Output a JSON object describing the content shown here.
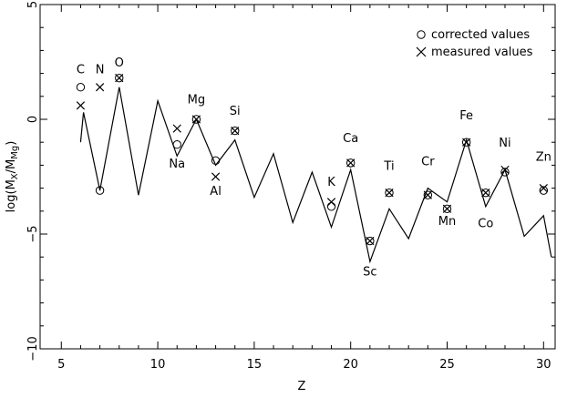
{
  "chart_data": {
    "type": "line",
    "xlabel": "Z",
    "ylabel": {
      "main": "log(M",
      "sub1": "X",
      "mid": "/M",
      "sub2": "Mg",
      "end": ")"
    },
    "xlim": [
      3.9,
      30.6
    ],
    "ylim": [
      -10,
      5
    ],
    "x_ticks": [
      5,
      10,
      15,
      20,
      25,
      30
    ],
    "y_ticks": [
      5,
      0,
      -5,
      -10
    ],
    "x_tick_labels": [
      "5",
      "10",
      "15",
      "20",
      "25",
      "30"
    ],
    "y_tick_labels": [
      "5",
      "0",
      "−5",
      "−10"
    ],
    "legend": {
      "position": "top-right",
      "corrected": "corrected values",
      "measured": "measured values"
    },
    "series": [
      {
        "x": [
          6,
          6.15,
          7,
          8,
          9,
          10,
          11,
          12,
          13,
          14,
          15,
          16,
          17,
          18,
          19,
          20,
          21,
          22,
          23,
          24,
          25,
          26,
          27,
          28,
          29,
          30,
          30.4
        ],
        "y": [
          -1.0,
          0.3,
          -3.1,
          1.4,
          -3.3,
          0.8,
          -1.6,
          0.0,
          -2.0,
          -0.9,
          -3.4,
          -1.5,
          -4.5,
          -2.3,
          -4.7,
          -2.2,
          -6.2,
          -3.9,
          -5.2,
          -3.0,
          -3.6,
          -0.9,
          -3.8,
          -2.2,
          -5.1,
          -4.2,
          -6.0
        ]
      }
    ],
    "corrected": [
      {
        "z": 6,
        "v": 1.4
      },
      {
        "z": 7,
        "v": -3.1
      },
      {
        "z": 8,
        "v": 1.8
      },
      {
        "z": 11,
        "v": -1.1
      },
      {
        "z": 12,
        "v": 0.0
      },
      {
        "z": 13,
        "v": -1.8
      },
      {
        "z": 14,
        "v": -0.5
      },
      {
        "z": 19,
        "v": -3.8
      },
      {
        "z": 20,
        "v": -1.9
      },
      {
        "z": 21,
        "v": -5.3
      },
      {
        "z": 22,
        "v": -3.2
      },
      {
        "z": 24,
        "v": -3.3
      },
      {
        "z": 25,
        "v": -3.9
      },
      {
        "z": 26,
        "v": -1.0
      },
      {
        "z": 27,
        "v": -3.2
      },
      {
        "z": 28,
        "v": -2.3
      },
      {
        "z": 30,
        "v": -3.1
      }
    ],
    "measured": [
      {
        "z": 6,
        "v": 0.6
      },
      {
        "z": 7,
        "v": 1.4
      },
      {
        "z": 8,
        "v": 1.8
      },
      {
        "z": 11,
        "v": -0.4
      },
      {
        "z": 12,
        "v": 0.0
      },
      {
        "z": 13,
        "v": -2.5
      },
      {
        "z": 14,
        "v": -0.5
      },
      {
        "z": 19,
        "v": -3.6
      },
      {
        "z": 20,
        "v": -1.9
      },
      {
        "z": 21,
        "v": -5.3
      },
      {
        "z": 22,
        "v": -3.2
      },
      {
        "z": 24,
        "v": -3.3
      },
      {
        "z": 25,
        "v": -3.9
      },
      {
        "z": 26,
        "v": -1.0
      },
      {
        "z": 27,
        "v": -3.2
      },
      {
        "z": 28,
        "v": -2.2
      },
      {
        "z": 30,
        "v": -3.0
      }
    ],
    "labels": [
      {
        "text": "C",
        "z": 6,
        "v": 2.0
      },
      {
        "text": "N",
        "z": 7,
        "v": 2.0
      },
      {
        "text": "O",
        "z": 8,
        "v": 2.3
      },
      {
        "text": "Na",
        "z": 11,
        "v": -2.1
      },
      {
        "text": "Mg",
        "z": 12,
        "v": 0.7
      },
      {
        "text": "Al",
        "z": 13,
        "v": -3.3
      },
      {
        "text": "Si",
        "z": 14,
        "v": 0.2
      },
      {
        "text": "K",
        "z": 19,
        "v": -2.9
      },
      {
        "text": "Ca",
        "z": 20,
        "v": -1.0
      },
      {
        "text": "Sc",
        "z": 21,
        "v": -6.8
      },
      {
        "text": "Ti",
        "z": 22,
        "v": -2.2
      },
      {
        "text": "Cr",
        "z": 24,
        "v": -2.0
      },
      {
        "text": "Mn",
        "z": 25,
        "v": -4.6
      },
      {
        "text": "Fe",
        "z": 26,
        "v": 0.0
      },
      {
        "text": "Co",
        "z": 27,
        "v": -4.7
      },
      {
        "text": "Ni",
        "z": 28,
        "v": -1.2
      },
      {
        "text": "Zn",
        "z": 30,
        "v": -1.8
      }
    ]
  }
}
